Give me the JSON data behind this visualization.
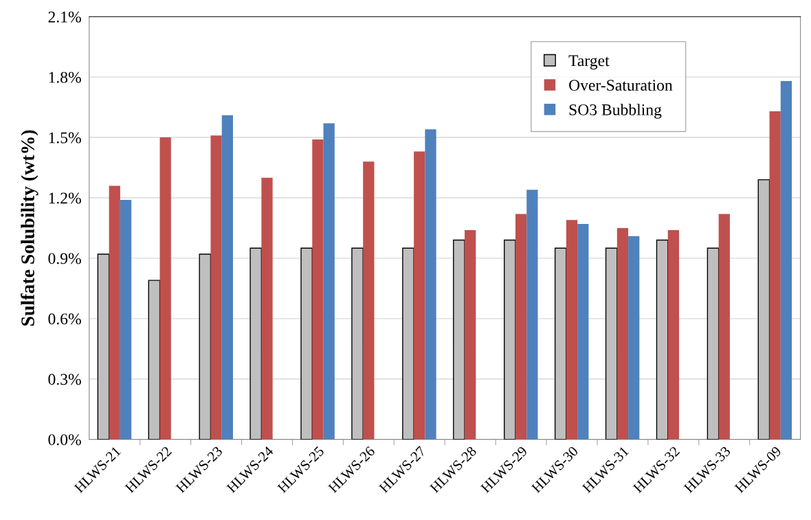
{
  "chart_data": {
    "type": "bar",
    "ylabel": "Sulfate Solubility (wt%)",
    "categories": [
      "HLWS-21",
      "HLWS-22",
      "HLWS-23",
      "HLWS-24",
      "HLWS-25",
      "HLWS-26",
      "HLWS-27",
      "HLWS-28",
      "HLWS-29",
      "HLWS-30",
      "HLWS-31",
      "HLWS-32",
      "HLWS-33",
      "HLWS-09"
    ],
    "series": [
      {
        "name": "Target",
        "color": "#bfbfbf",
        "values": [
          0.92,
          0.79,
          0.92,
          0.95,
          0.95,
          0.95,
          0.95,
          0.99,
          0.99,
          0.95,
          0.95,
          0.99,
          0.95,
          1.29
        ]
      },
      {
        "name": "Over-Saturation",
        "color": "#c0504d",
        "values": [
          1.26,
          1.5,
          1.51,
          1.3,
          1.49,
          1.38,
          1.43,
          1.04,
          1.12,
          1.09,
          1.05,
          1.04,
          1.12,
          1.63
        ]
      },
      {
        "name": "SO3 Bubbling",
        "color": "#4f81bd",
        "values": [
          1.19,
          null,
          1.61,
          null,
          1.57,
          null,
          1.54,
          null,
          1.24,
          1.07,
          1.01,
          null,
          null,
          1.78
        ]
      }
    ],
    "ylim": [
      0,
      2.1
    ],
    "yticks": [
      {
        "value": 0,
        "label": "0.0%"
      },
      {
        "value": 0.3,
        "label": "0.3%"
      },
      {
        "value": 0.6,
        "label": "0.6%"
      },
      {
        "value": 0.9,
        "label": "0.9%"
      },
      {
        "value": 1.2,
        "label": "1.2%"
      },
      {
        "value": 1.5,
        "label": "1.5%"
      },
      {
        "value": 1.8,
        "label": "1.8%"
      },
      {
        "value": 2.1,
        "label": "2.1%"
      }
    ],
    "grid": "y",
    "legend": "top right"
  }
}
